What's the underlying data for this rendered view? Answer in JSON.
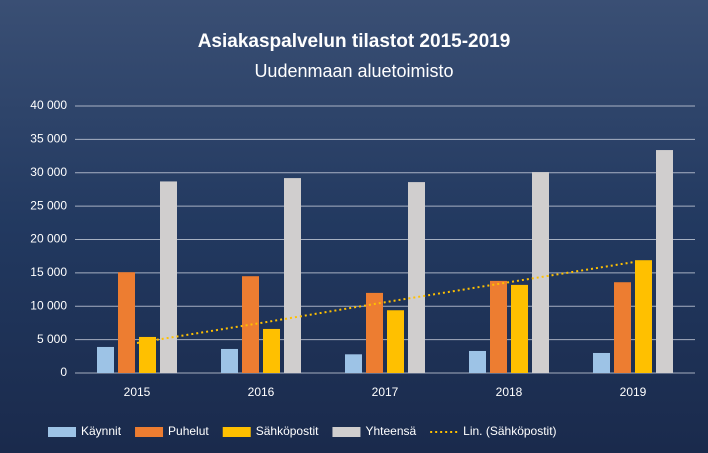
{
  "chart_data": {
    "type": "bar",
    "title": "Asiakaspalvelun tilastot 2015-2019",
    "subtitle": "Uudenmaan aluetoimisto",
    "categories": [
      "2015",
      "2016",
      "2017",
      "2018",
      "2019"
    ],
    "series": [
      {
        "name": "Käynnit",
        "color": "#9dc3e6",
        "values": [
          3900,
          3600,
          2800,
          3300,
          3000
        ]
      },
      {
        "name": "Puhelut",
        "color": "#ed7d31",
        "values": [
          15100,
          14500,
          12000,
          13800,
          13600
        ]
      },
      {
        "name": "Sähköpostit",
        "color": "#ffc000",
        "values": [
          5400,
          6600,
          9400,
          13200,
          16900
        ]
      },
      {
        "name": "Yhteensä",
        "color": "#d0cece",
        "values": [
          28700,
          29200,
          28600,
          30100,
          33400
        ]
      }
    ],
    "trendline": {
      "name": "Lin. (Sähköpostit)",
      "color": "#ffc000",
      "values": [
        4500,
        7500,
        10600,
        13600,
        16600
      ]
    },
    "ylim": [
      0,
      40000
    ],
    "yticks": [
      0,
      {
        "value": 5000,
        "label": "5 000"
      },
      {
        "value": 10000,
        "label": "10 000"
      },
      {
        "value": 15000,
        "label": "15 000"
      },
      {
        "value": 20000,
        "label": "20 000"
      },
      {
        "value": 25000,
        "label": "25 000"
      },
      {
        "value": 30000,
        "label": "30 000"
      },
      {
        "value": 35000,
        "label": "35 000"
      },
      {
        "value": 40000,
        "label": "40 000"
      }
    ],
    "grid": true
  }
}
